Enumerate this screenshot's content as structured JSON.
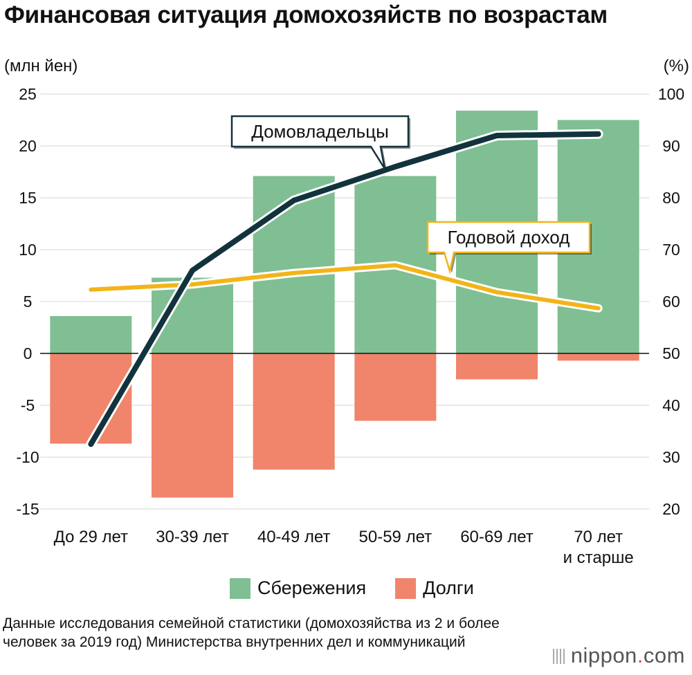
{
  "title": "Финансовая ситуация домохозяйств по возрастам",
  "left_unit": "(млн йен)",
  "right_unit": "(%)",
  "legend": {
    "savings": "Сбережения",
    "debts": "Долги"
  },
  "source": "Данные исследования семейной статистики (домохозяйства из 2 и более человек за 2019 год) Министерства внутренних дел и коммуникаций",
  "brand": {
    "name": "nippon",
    "dot": ".",
    "suffix": "com"
  },
  "chart_data": {
    "type": "bar+line",
    "categories": [
      "До 29 лет",
      "30-39 лет",
      "40-49 лет",
      "50-59 лет",
      "60-69 лет",
      "70 лет\nи старше"
    ],
    "left_axis": {
      "label": "(млн йен)",
      "range": [
        -15,
        25
      ],
      "ticks": [
        25,
        20,
        15,
        10,
        5,
        0,
        -5,
        -10,
        -15
      ],
      "tick_labels": [
        "25",
        "20",
        "15",
        "10",
        "5",
        "0",
        "-5",
        "-10",
        "-15"
      ]
    },
    "right_axis": {
      "label": "(%)",
      "range": [
        20,
        100
      ],
      "ticks": [
        100,
        90,
        80,
        70,
        60,
        50,
        40,
        30,
        20
      ],
      "tick_labels": [
        "100",
        "90",
        "80",
        "70",
        "60",
        "50",
        "40",
        "30",
        "20"
      ]
    },
    "series": [
      {
        "name": "Сбережения",
        "type": "bar",
        "axis": "left",
        "color": "#7fbf93",
        "values": [
          3.6,
          7.3,
          17.1,
          17.1,
          23.4,
          22.5
        ]
      },
      {
        "name": "Долги",
        "type": "bar",
        "axis": "left",
        "color": "#f0856c",
        "values": [
          -8.7,
          -13.9,
          -11.2,
          -6.5,
          -2.5,
          -0.7
        ]
      },
      {
        "name": "Домовладельцы",
        "type": "line",
        "axis": "right",
        "color": "#12333d",
        "values": [
          32.5,
          66,
          79.5,
          86,
          92,
          92.3
        ]
      },
      {
        "name": "Годовой доход",
        "type": "line",
        "axis": "right",
        "color": "#f2b418",
        "values": [
          62.3,
          63.3,
          65.5,
          67,
          61.8,
          58.7
        ]
      }
    ],
    "annotations": [
      "Домовладельцы",
      "Годовой доход"
    ],
    "grid": true
  }
}
